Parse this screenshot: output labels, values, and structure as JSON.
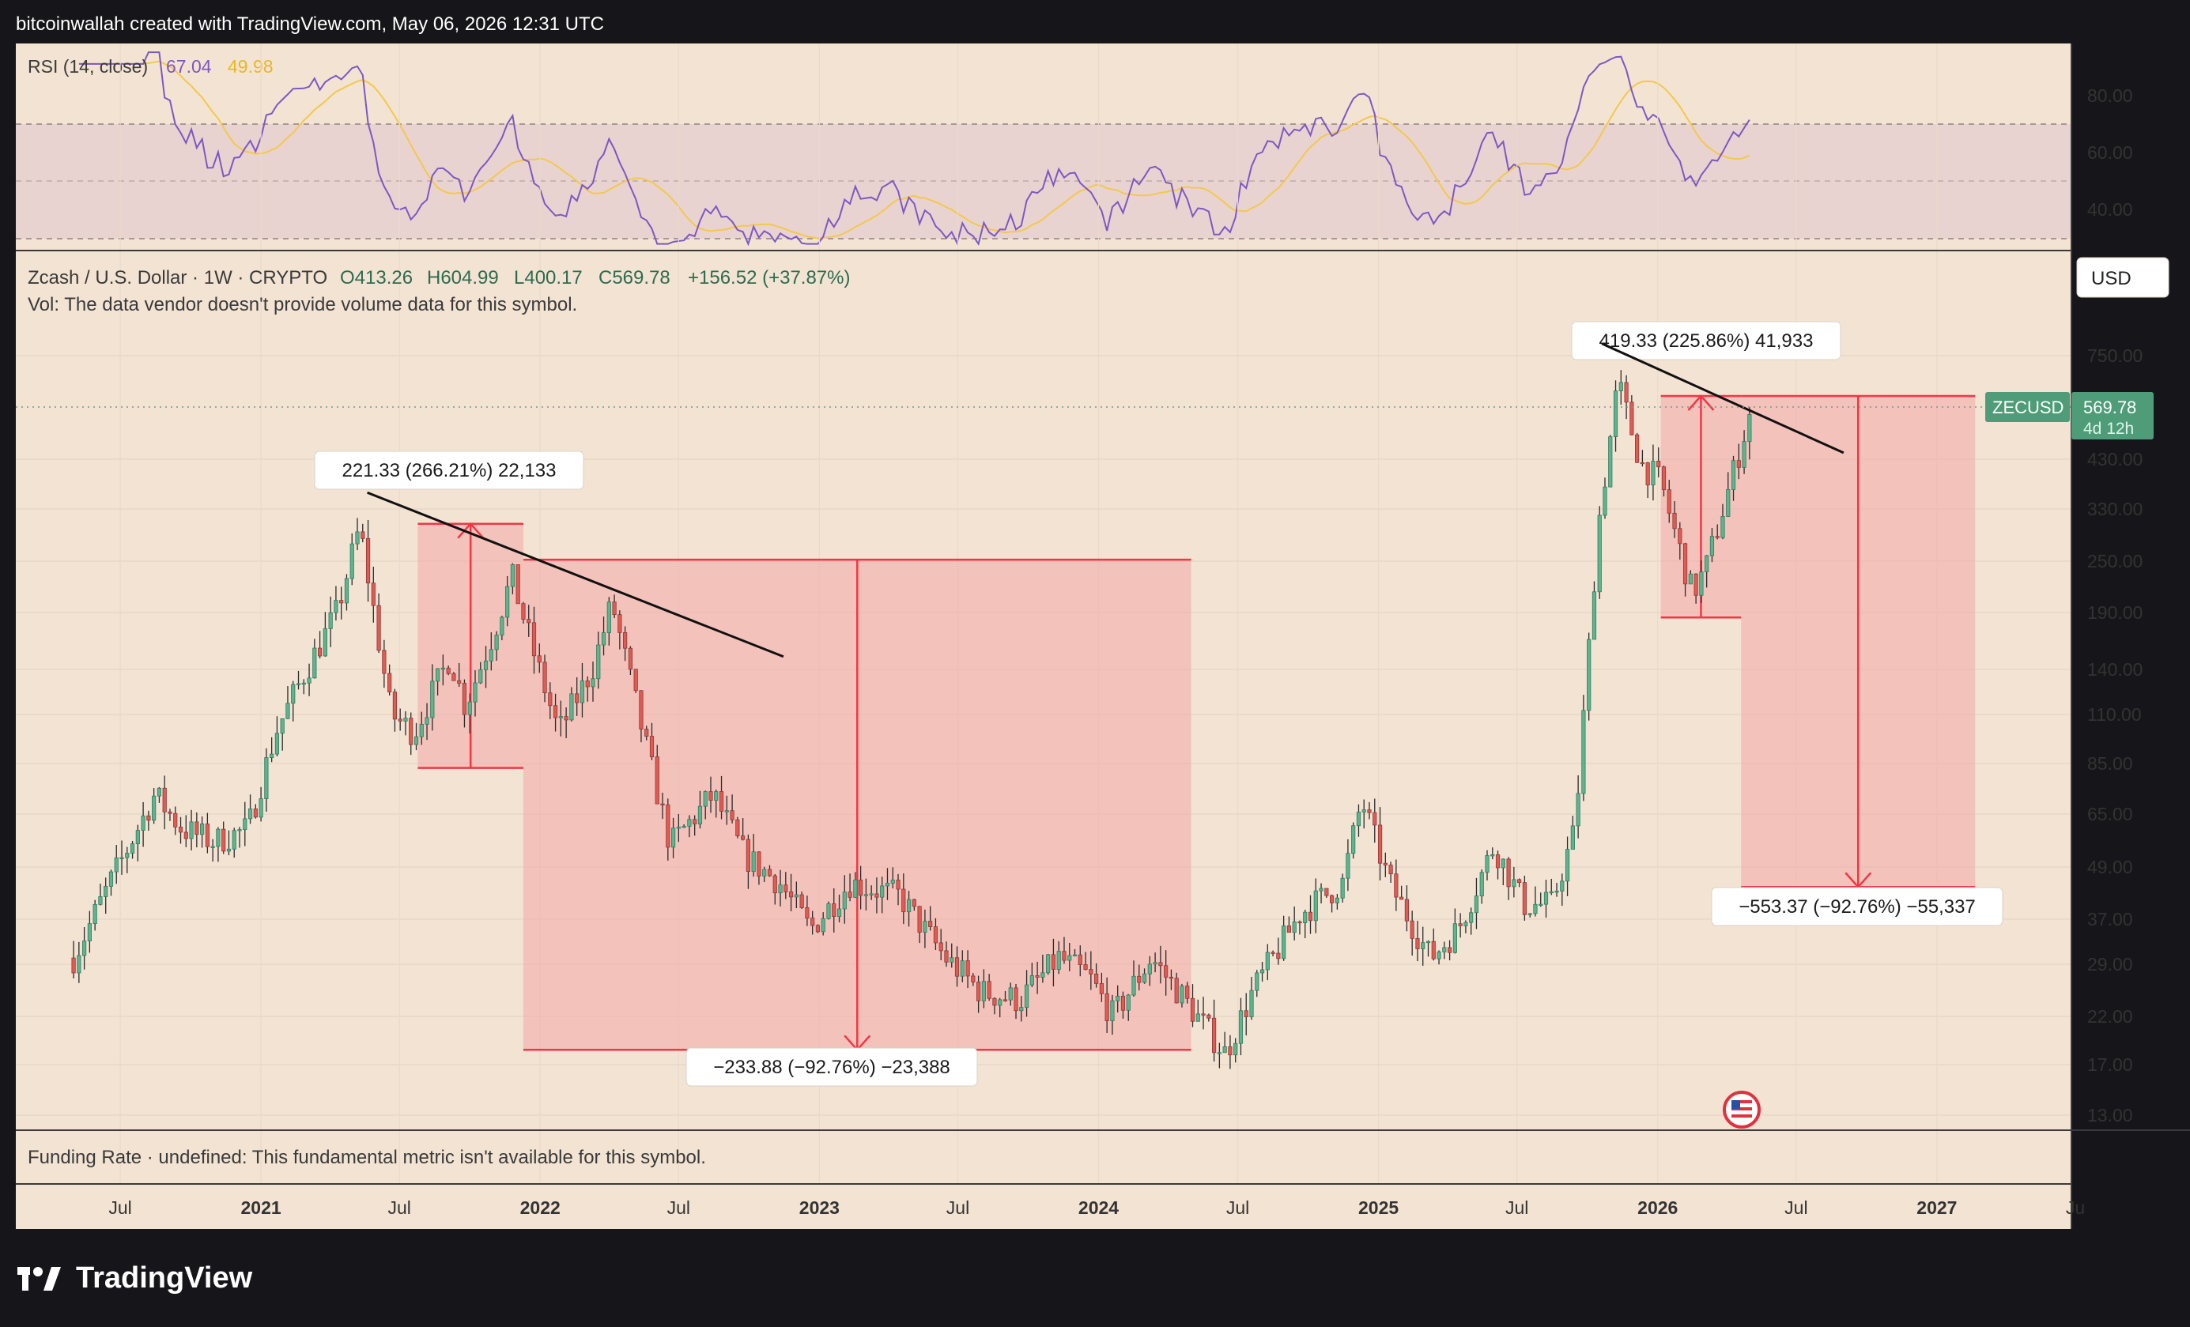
{
  "header": {
    "attribution": "bitcoinwallah created with TradingView.com, May 06, 2026 12:31 UTC"
  },
  "rsi": {
    "label": "RSI (14, close)",
    "value1": "67.04",
    "value2": "49.98",
    "levels": [
      "80.00",
      "60.00",
      "40.00"
    ],
    "colors": {
      "rsi": "#7e57c2",
      "ma": "#f2c94c"
    }
  },
  "price": {
    "symbol_line": "Zcash / U.S. Dollar · 1W · CRYPTO",
    "open": "O413.26",
    "high": "H604.99",
    "low": "L400.17",
    "close": "C569.78",
    "change": "+156.52 (+37.87%)",
    "vol_note": "Vol: The data vendor doesn't provide volume data for this symbol.",
    "currency": "USD",
    "ticker": "ZECUSD",
    "last_price": "569.78",
    "countdown": "4d 12h",
    "colors": {
      "up": "#26a69a",
      "down": "#ef5350",
      "accent": "#f23645"
    }
  },
  "funding": {
    "text": "Funding Rate · undefined: This fundamental metric isn't available for this symbol."
  },
  "annotations": {
    "measure1": "221.33 (266.21%) 22,133",
    "measure2": "−233.88 (−92.76%) −23,388",
    "measure3": "419.33 (225.86%) 41,933",
    "measure4": "−553.37 (−92.76%) −55,337"
  },
  "footer": {
    "brand": "TradingView"
  },
  "chart_data": {
    "type": "candlestick",
    "title": "Zcash / U.S. Dollar · 1W · CRYPTO",
    "yscale": "log",
    "ylim": [
      11.5,
      1000
    ],
    "y_ticks": [
      "750.00",
      "430.00",
      "330.00",
      "250.00",
      "190.00",
      "140.00",
      "110.00",
      "85.00",
      "65.00",
      "49.00",
      "37.00",
      "29.00",
      "22.00",
      "17.00",
      "13.00"
    ],
    "x_ticks": [
      "Jul",
      "2021",
      "Jul",
      "2022",
      "Jul",
      "2023",
      "Jul",
      "2024",
      "Jul",
      "2025",
      "Jul",
      "2026",
      "Jul",
      "2027",
      "Ju"
    ],
    "price_path": [
      [
        "2020-05-01",
        30
      ],
      [
        "2020-06-15",
        44
      ],
      [
        "2020-08-15",
        72
      ],
      [
        "2020-09-20",
        60
      ],
      [
        "2020-11-01",
        56
      ],
      [
        "2020-12-15",
        60
      ],
      [
        "2021-01-20",
        100
      ],
      [
        "2021-02-25",
        135
      ],
      [
        "2021-04-10",
        190
      ],
      [
        "2021-05-10",
        300
      ],
      [
        "2021-06-20",
        110
      ],
      [
        "2021-07-20",
        100
      ],
      [
        "2021-09-05",
        150
      ],
      [
        "2021-09-25",
        115
      ],
      [
        "2021-11-01",
        170
      ],
      [
        "2021-11-25",
        230
      ],
      [
        "2021-12-25",
        150
      ],
      [
        "2022-01-25",
        100
      ],
      [
        "2022-03-10",
        140
      ],
      [
        "2022-04-05",
        200
      ],
      [
        "2022-05-15",
        100
      ],
      [
        "2022-06-20",
        55
      ],
      [
        "2022-08-15",
        72
      ],
      [
        "2022-09-25",
        52
      ],
      [
        "2022-11-10",
        45
      ],
      [
        "2022-12-20",
        35
      ],
      [
        "2023-02-10",
        45
      ],
      [
        "2023-04-15",
        42
      ],
      [
        "2023-06-15",
        30
      ],
      [
        "2023-08-01",
        25
      ],
      [
        "2023-09-20",
        24
      ],
      [
        "2023-11-10",
        30
      ],
      [
        "2023-12-20",
        27
      ],
      [
        "2024-01-20",
        22
      ],
      [
        "2024-03-10",
        30
      ],
      [
        "2024-04-15",
        25
      ],
      [
        "2024-06-15",
        18
      ],
      [
        "2024-07-20",
        25
      ],
      [
        "2024-09-20",
        38
      ],
      [
        "2024-11-15",
        45
      ],
      [
        "2024-12-10",
        70
      ],
      [
        "2025-01-15",
        45
      ],
      [
        "2025-03-10",
        30
      ],
      [
        "2025-04-15",
        35
      ],
      [
        "2025-06-01",
        55
      ],
      [
        "2025-07-10",
        40
      ],
      [
        "2025-08-15",
        40
      ],
      [
        "2025-09-15",
        60
      ],
      [
        "2025-10-15",
        300
      ],
      [
        "2025-11-10",
        650
      ],
      [
        "2025-12-10",
        420
      ],
      [
        "2026-01-05",
        380
      ],
      [
        "2026-02-15",
        210
      ],
      [
        "2026-03-05",
        240
      ],
      [
        "2026-04-10",
        400
      ],
      [
        "2026-05-04",
        570
      ]
    ],
    "drawings": [
      {
        "kind": "measure",
        "label": "221.33 (266.21%) 22,133",
        "from": "2021-07-25",
        "to": "2021-12-10",
        "low": 83,
        "high": 305
      },
      {
        "kind": "measure",
        "label": "−233.88 (−92.76%) −23,388",
        "from": "2021-12-10",
        "to": "2024-05-01",
        "low": 18.4,
        "high": 252
      },
      {
        "kind": "measure",
        "label": "419.33 (225.86%) 41,933",
        "from": "2026-01-05",
        "to": "2026-04-20",
        "low": 185,
        "high": 604
      },
      {
        "kind": "measure",
        "label": "−553.37 (−92.76%) −55,337",
        "from": "2026-04-20",
        "to": "2027-02-20",
        "low": 44,
        "high": 604
      },
      {
        "kind": "trendline",
        "from": [
          "2021-05-20",
          360
        ],
        "to": [
          "2022-11-15",
          150
        ]
      },
      {
        "kind": "trendline",
        "from": [
          "2025-10-20",
          800
        ],
        "to": [
          "2026-09-01",
          445
        ]
      }
    ]
  }
}
